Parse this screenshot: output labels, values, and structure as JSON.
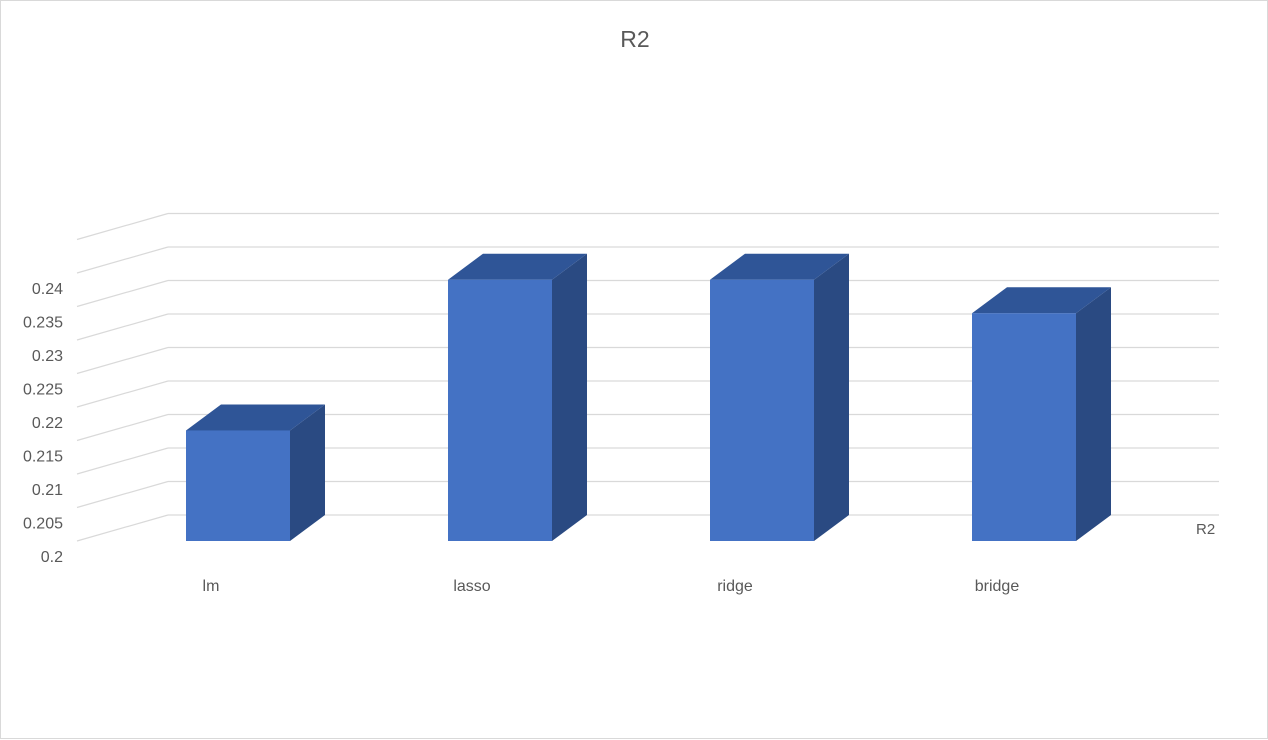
{
  "chart_data": {
    "type": "bar",
    "style": "3d-column",
    "title": "R2",
    "categories": [
      "lm",
      "lasso",
      "ridge",
      "bridge"
    ],
    "series": [
      {
        "name": "R2",
        "values": [
          0.2165,
          0.239,
          0.239,
          0.234
        ]
      }
    ],
    "ylim": [
      0.2,
      0.245
    ],
    "y_ticks": [
      "0.2",
      "0.205",
      "0.21",
      "0.215",
      "0.22",
      "0.225",
      "0.23",
      "0.235",
      "0.24"
    ],
    "grid": true,
    "legend": "none",
    "colors": {
      "front": "#4472c4",
      "top": "#2f5597",
      "side": "#2a4a82",
      "grid": "#d9d9d9",
      "text": "#595959"
    }
  }
}
